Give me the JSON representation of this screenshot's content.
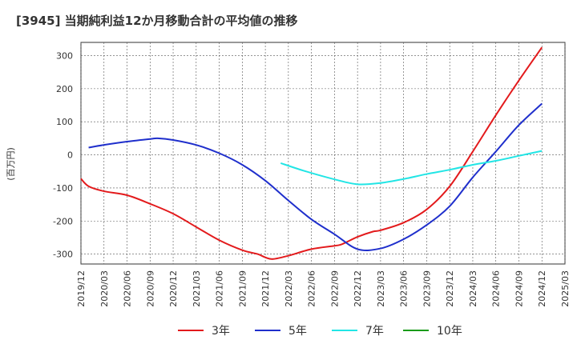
{
  "chart_data": {
    "type": "line",
    "title": "[3945]  当期純利益12か月移動合計の平均値の推移",
    "ylabel": "(百万円)",
    "ylim": [
      -330,
      340
    ],
    "yticks": [
      300,
      200,
      100,
      0,
      -100,
      -200,
      -300
    ],
    "x_ticks": [
      "2019/12",
      "2020/03",
      "2020/06",
      "2020/09",
      "2020/12",
      "2021/03",
      "2021/06",
      "2021/09",
      "2021/12",
      "2022/03",
      "2022/06",
      "2022/09",
      "2022/12",
      "2023/03",
      "2023/06",
      "2023/09",
      "2023/12",
      "2024/03",
      "2024/06",
      "2024/09",
      "2024/12",
      "2025/03"
    ],
    "grid": true,
    "legend_position": "bottom",
    "series": [
      {
        "name": "3年",
        "color": "#e31a1c",
        "points": [
          [
            "2019/12",
            -72
          ],
          [
            "2020/01",
            -95
          ],
          [
            "2020/03",
            -110
          ],
          [
            "2020/06",
            -122
          ],
          [
            "2020/09",
            -148
          ],
          [
            "2020/12",
            -178
          ],
          [
            "2021/03",
            -218
          ],
          [
            "2021/06",
            -258
          ],
          [
            "2021/09",
            -288
          ],
          [
            "2021/11",
            -300
          ],
          [
            "2021/12",
            -310
          ],
          [
            "2022/01",
            -315
          ],
          [
            "2022/03",
            -305
          ],
          [
            "2022/06",
            -285
          ],
          [
            "2022/09",
            -275
          ],
          [
            "2022/10",
            -270
          ],
          [
            "2022/12",
            -248
          ],
          [
            "2023/02",
            -232
          ],
          [
            "2023/03",
            -228
          ],
          [
            "2023/06",
            -205
          ],
          [
            "2023/09",
            -165
          ],
          [
            "2023/12",
            -95
          ],
          [
            "2024/03",
            10
          ],
          [
            "2024/06",
            120
          ],
          [
            "2024/09",
            225
          ],
          [
            "2024/12",
            325
          ]
        ]
      },
      {
        "name": "5年",
        "color": "#1f2fcc",
        "points": [
          [
            "2020/01",
            22
          ],
          [
            "2020/03",
            30
          ],
          [
            "2020/06",
            40
          ],
          [
            "2020/09",
            48
          ],
          [
            "2020/10",
            50
          ],
          [
            "2020/12",
            45
          ],
          [
            "2021/03",
            30
          ],
          [
            "2021/06",
            5
          ],
          [
            "2021/09",
            -30
          ],
          [
            "2021/12",
            -78
          ],
          [
            "2022/03",
            -138
          ],
          [
            "2022/06",
            -195
          ],
          [
            "2022/09",
            -240
          ],
          [
            "2022/12",
            -285
          ],
          [
            "2023/03",
            -283
          ],
          [
            "2023/06",
            -255
          ],
          [
            "2023/09",
            -212
          ],
          [
            "2023/12",
            -155
          ],
          [
            "2024/03",
            -68
          ],
          [
            "2024/06",
            10
          ],
          [
            "2024/09",
            90
          ],
          [
            "2024/12",
            155
          ]
        ]
      },
      {
        "name": "7年",
        "color": "#22e5e5",
        "points": [
          [
            "2022/02",
            -25
          ],
          [
            "2022/05",
            -48
          ],
          [
            "2022/09",
            -74
          ],
          [
            "2022/12",
            -89
          ],
          [
            "2023/03",
            -85
          ],
          [
            "2023/06",
            -73
          ],
          [
            "2023/09",
            -58
          ],
          [
            "2023/12",
            -45
          ],
          [
            "2024/03",
            -30
          ],
          [
            "2024/06",
            -18
          ],
          [
            "2024/09",
            -3
          ],
          [
            "2024/12",
            12
          ]
        ]
      },
      {
        "name": "10年",
        "color": "#1a9b1a",
        "points": []
      }
    ]
  }
}
